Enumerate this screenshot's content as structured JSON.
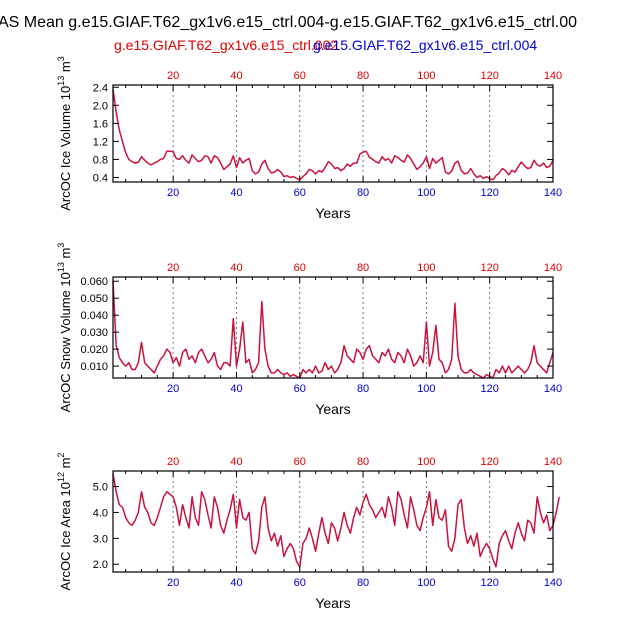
{
  "header": {
    "title": "AS Mean g.e15.GIAF.T62_gx1v6.e15_ctrl.004-g.e15.GIAF.T62_gx1v6.e15_ctrl.00",
    "subtitle_red": "g.e15.GIAF.T62_gx1v6.e15_ctrl.002",
    "subtitle_blue": "g.e15.GIAF.T62_gx1v6.e15_ctrl.004"
  },
  "colors": {
    "red": "#dd0000",
    "blue": "#0000cc",
    "line": "#c8143c"
  },
  "chart_data": [
    {
      "type": "line",
      "ylabel_main": "ArcOC Ice Volume 10",
      "ylabel_exp": "13",
      "ylabel_unit": " m",
      "ylabel_unit_exp": "3",
      "xlabel": "Years",
      "xlim": [
        1,
        140
      ],
      "ylim": [
        0.3,
        2.45
      ],
      "yticks": [
        0.4,
        0.8,
        1.2,
        1.6,
        2.0,
        2.4
      ],
      "ytick_labels": [
        "0.4",
        "0.8",
        "1.2",
        "1.6",
        "2.0",
        "2.4"
      ],
      "xticks": [
        20,
        40,
        60,
        80,
        100,
        120,
        140
      ],
      "xtick_labels": [
        "20",
        "40",
        "60",
        "80",
        "100",
        "120",
        "140"
      ],
      "grid_x": true,
      "series": [
        {
          "values": [
            2.35,
            1.85,
            1.45,
            1.2,
            0.95,
            0.8,
            0.75,
            0.72,
            0.74,
            0.86,
            0.78,
            0.72,
            0.68,
            0.72,
            0.75,
            0.8,
            0.82,
            0.98,
            0.98,
            0.97,
            0.82,
            0.8,
            0.88,
            0.78,
            0.72,
            0.9,
            0.82,
            0.75,
            0.78,
            0.88,
            0.86,
            0.72,
            0.88,
            0.84,
            0.72,
            0.58,
            0.64,
            0.7,
            0.88,
            0.62,
            0.84,
            0.72,
            0.78,
            0.82,
            0.55,
            0.48,
            0.52,
            0.7,
            0.78,
            0.6,
            0.5,
            0.52,
            0.58,
            0.52,
            0.42,
            0.44,
            0.4,
            0.42,
            0.38,
            0.35,
            0.42,
            0.48,
            0.58,
            0.55,
            0.48,
            0.55,
            0.52,
            0.62,
            0.75,
            0.7,
            0.6,
            0.62,
            0.55,
            0.6,
            0.7,
            0.65,
            0.72,
            0.72,
            0.92,
            0.96,
            0.98,
            0.85,
            0.8,
            0.75,
            0.72,
            0.86,
            0.78,
            0.82,
            0.72,
            0.88,
            0.84,
            0.78,
            0.74,
            0.9,
            0.82,
            0.7,
            0.58,
            0.64,
            0.72,
            0.86,
            0.6,
            0.82,
            0.72,
            0.78,
            0.84,
            0.52,
            0.48,
            0.54,
            0.72,
            0.76,
            0.56,
            0.48,
            0.5,
            0.6,
            0.48,
            0.4,
            0.44,
            0.38,
            0.42,
            0.37,
            0.35,
            0.44,
            0.5,
            0.6,
            0.55,
            0.46,
            0.56,
            0.52,
            0.64,
            0.74,
            0.66,
            0.6,
            0.62,
            0.78,
            0.68,
            0.65,
            0.72,
            0.62,
            0.65,
            0.78
          ]
        }
      ]
    },
    {
      "type": "line",
      "ylabel_main": "ArcOC Snow Volume 10",
      "ylabel_exp": "13",
      "ylabel_unit": " m",
      "ylabel_unit_exp": "3",
      "xlabel": "Years",
      "xlim": [
        1,
        140
      ],
      "ylim": [
        0.003,
        0.0625
      ],
      "yticks": [
        0.01,
        0.02,
        0.03,
        0.04,
        0.05,
        0.06
      ],
      "ytick_labels": [
        "0.010",
        "0.020",
        "0.030",
        "0.040",
        "0.050",
        "0.060"
      ],
      "xticks": [
        20,
        40,
        60,
        80,
        100,
        120,
        140
      ],
      "xtick_labels": [
        "20",
        "40",
        "60",
        "80",
        "100",
        "120",
        "140"
      ],
      "grid_x": true,
      "series": [
        {
          "values": [
            0.06,
            0.022,
            0.015,
            0.012,
            0.01,
            0.012,
            0.008,
            0.008,
            0.012,
            0.024,
            0.012,
            0.01,
            0.008,
            0.006,
            0.01,
            0.014,
            0.016,
            0.02,
            0.018,
            0.012,
            0.015,
            0.01,
            0.018,
            0.02,
            0.014,
            0.016,
            0.012,
            0.018,
            0.02,
            0.016,
            0.012,
            0.014,
            0.018,
            0.01,
            0.008,
            0.012,
            0.012,
            0.01,
            0.038,
            0.01,
            0.02,
            0.036,
            0.012,
            0.014,
            0.006,
            0.008,
            0.012,
            0.048,
            0.02,
            0.01,
            0.006,
            0.006,
            0.008,
            0.006,
            0.005,
            0.006,
            0.004,
            0.005,
            0.004,
            0.003,
            0.008,
            0.006,
            0.008,
            0.006,
            0.01,
            0.006,
            0.007,
            0.012,
            0.008,
            0.01,
            0.006,
            0.008,
            0.012,
            0.022,
            0.016,
            0.014,
            0.012,
            0.02,
            0.018,
            0.014,
            0.02,
            0.022,
            0.016,
            0.014,
            0.012,
            0.018,
            0.016,
            0.02,
            0.014,
            0.012,
            0.018,
            0.016,
            0.012,
            0.02,
            0.016,
            0.01,
            0.012,
            0.016,
            0.012,
            0.036,
            0.01,
            0.018,
            0.034,
            0.014,
            0.012,
            0.006,
            0.008,
            0.014,
            0.047,
            0.016,
            0.008,
            0.006,
            0.006,
            0.008,
            0.006,
            0.005,
            0.004,
            0.003,
            0.005,
            0.004,
            0.003,
            0.008,
            0.006,
            0.01,
            0.006,
            0.01,
            0.006,
            0.008,
            0.01,
            0.008,
            0.006,
            0.008,
            0.012,
            0.022,
            0.012,
            0.01,
            0.008,
            0.006,
            0.012,
            0.018
          ]
        }
      ]
    },
    {
      "type": "line",
      "ylabel_main": "ArcOC Ice Area 10",
      "ylabel_exp": "12",
      "ylabel_unit": " m",
      "ylabel_unit_exp": "2",
      "xlabel": "Years",
      "xlim": [
        1,
        140
      ],
      "ylim": [
        1.7,
        5.6
      ],
      "yticks": [
        2.0,
        3.0,
        4.0,
        5.0
      ],
      "ytick_labels": [
        "2.0",
        "3.0",
        "4.0",
        "5.0"
      ],
      "xticks": [
        20,
        40,
        60,
        80,
        100,
        120,
        140
      ],
      "xtick_labels": [
        "20",
        "40",
        "60",
        "80",
        "100",
        "120",
        "140"
      ],
      "grid_x": true,
      "series": [
        {
          "values": [
            5.5,
            4.8,
            4.3,
            4.2,
            3.8,
            3.6,
            3.5,
            3.7,
            4.0,
            4.8,
            4.2,
            4.0,
            3.6,
            3.5,
            3.8,
            4.2,
            4.6,
            4.8,
            4.7,
            4.6,
            4.2,
            3.5,
            4.3,
            3.8,
            3.4,
            4.6,
            3.8,
            3.5,
            4.8,
            4.5,
            3.9,
            3.4,
            4.6,
            4.2,
            3.5,
            3.2,
            3.7,
            4.1,
            4.7,
            3.4,
            4.5,
            3.8,
            3.7,
            4.0,
            2.6,
            2.4,
            2.9,
            4.2,
            4.6,
            3.4,
            2.9,
            3.2,
            2.7,
            3.1,
            2.3,
            2.6,
            2.8,
            2.6,
            2.1,
            1.9,
            2.8,
            3.0,
            3.4,
            3.0,
            2.5,
            3.2,
            3.8,
            3.2,
            2.8,
            3.6,
            3.4,
            2.9,
            3.4,
            4.0,
            3.5,
            3.2,
            3.8,
            4.2,
            3.9,
            4.4,
            4.7,
            4.3,
            4.1,
            3.8,
            4.0,
            4.2,
            3.8,
            4.6,
            4.2,
            3.5,
            4.8,
            4.5,
            3.9,
            3.4,
            4.6,
            4.1,
            3.5,
            3.3,
            3.8,
            4.2,
            4.8,
            3.5,
            4.5,
            3.8,
            3.7,
            4.1,
            2.7,
            2.5,
            3.0,
            4.3,
            4.5,
            3.4,
            2.8,
            3.1,
            2.7,
            3.2,
            2.3,
            2.6,
            2.8,
            2.6,
            2.2,
            1.9,
            2.8,
            3.1,
            3.3,
            2.9,
            2.6,
            3.2,
            3.6,
            3.2,
            2.9,
            3.7,
            3.6,
            3.2,
            4.6,
            4.0,
            3.6,
            3.9,
            3.3,
            3.5,
            4.0,
            4.6
          ]
        }
      ]
    }
  ]
}
